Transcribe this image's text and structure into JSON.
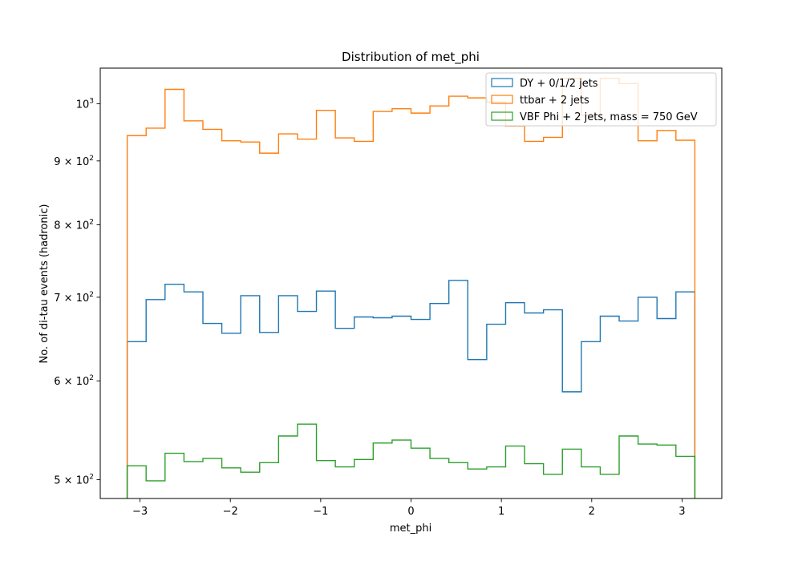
{
  "chart_data": {
    "type": "histogram-step",
    "title": "Distribution of met_phi",
    "xlabel": "met_phi",
    "ylabel": "No. of di-tau events (hadronic)",
    "xlim": [
      -3.44,
      3.44
    ],
    "ylim": [
      483,
      1068
    ],
    "yscale": "log",
    "legend_position": "top-right",
    "bin_edges": [
      -3.1416,
      -2.9322,
      -2.7227,
      -2.5133,
      -2.3038,
      -2.0944,
      -1.885,
      -1.6755,
      -1.4661,
      -1.2566,
      -1.0472,
      -0.8378,
      -0.6283,
      -0.4189,
      -0.2094,
      0.0,
      0.2094,
      0.4189,
      0.6283,
      0.8378,
      1.0472,
      1.2566,
      1.4661,
      1.6755,
      1.885,
      2.0944,
      2.3038,
      2.5133,
      2.7227,
      2.9322,
      3.1416
    ],
    "x_ticks": [
      {
        "value": -3,
        "label": "−3"
      },
      {
        "value": -2,
        "label": "−2"
      },
      {
        "value": -1,
        "label": "−1"
      },
      {
        "value": 0,
        "label": "0"
      },
      {
        "value": 1,
        "label": "1"
      },
      {
        "value": 2,
        "label": "2"
      },
      {
        "value": 3,
        "label": "3"
      }
    ],
    "y_ticks": [
      {
        "value": 500,
        "base": "5 × 10",
        "exp": "2"
      },
      {
        "value": 600,
        "base": "6 × 10",
        "exp": "2"
      },
      {
        "value": 700,
        "base": "7 × 10",
        "exp": "2"
      },
      {
        "value": 800,
        "base": "8 × 10",
        "exp": "2"
      },
      {
        "value": 900,
        "base": "9 × 10",
        "exp": "2"
      },
      {
        "value": 1000,
        "base": "10",
        "exp": "3"
      }
    ],
    "series": [
      {
        "name": "DY + 0/1/2 jets",
        "color": "#1f77b4",
        "values": [
          645,
          697,
          717,
          707,
          667,
          655,
          702,
          656,
          702,
          682,
          708,
          661,
          675,
          674,
          676,
          672,
          692,
          722,
          624,
          666,
          693,
          680,
          684,
          588,
          645,
          676,
          670,
          700,
          673,
          707
        ]
      },
      {
        "name": "ttbar + 2 jets",
        "color": "#ff7f0e",
        "values": [
          943,
          956,
          1027,
          969,
          954,
          934,
          932,
          913,
          946,
          937,
          988,
          939,
          933,
          986,
          991,
          983,
          996,
          1014,
          1011,
          1003,
          960,
          933,
          940,
          1048,
          979,
          1048,
          1038,
          934,
          952,
          935
        ]
      },
      {
        "name": "VBF Phi + 2 jets, mass = 750 GeV",
        "color": "#2ca02c",
        "values": [
          513,
          499,
          525,
          517,
          520,
          511,
          507,
          516,
          542,
          554,
          518,
          512,
          519,
          535,
          538,
          530,
          520,
          516,
          510,
          512,
          532,
          515,
          505,
          529,
          512,
          505,
          542,
          534,
          533,
          522
        ]
      }
    ]
  }
}
